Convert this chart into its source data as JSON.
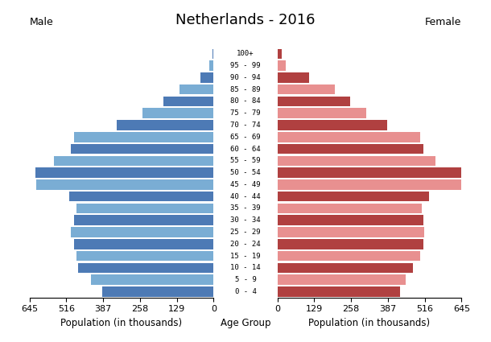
{
  "title": "Netherlands - 2016",
  "age_groups": [
    "0 - 4",
    "5 - 9",
    "10 - 14",
    "15 - 19",
    "20 - 24",
    "25 - 29",
    "30 - 34",
    "35 - 39",
    "40 - 44",
    "45 - 49",
    "50 - 54",
    "55 - 59",
    "60 - 64",
    "65 - 69",
    "70 - 74",
    "75 - 79",
    "80 - 84",
    "85 - 89",
    "90 - 94",
    "95 - 99",
    "100+"
  ],
  "male": [
    390,
    430,
    475,
    480,
    490,
    500,
    490,
    480,
    505,
    620,
    625,
    560,
    500,
    490,
    340,
    250,
    175,
    120,
    45,
    15,
    5
  ],
  "female": [
    430,
    450,
    475,
    500,
    510,
    515,
    510,
    505,
    530,
    645,
    645,
    555,
    510,
    500,
    385,
    310,
    255,
    200,
    110,
    30,
    15
  ],
  "male_colors_even": "#4d7ab5",
  "male_colors_odd": "#7aadd4",
  "female_colors_even": "#b04040",
  "female_colors_odd": "#e89090",
  "xlabel_left": "Population (in thousands)",
  "xlabel_center": "Age Group",
  "xlabel_right": "Population (in thousands)",
  "label_male": "Male",
  "label_female": "Female",
  "xlim": 645,
  "xticks": [
    0,
    129,
    258,
    387,
    516,
    645
  ],
  "background_color": "#ffffff",
  "title_fontsize": 13,
  "bar_height": 0.85
}
